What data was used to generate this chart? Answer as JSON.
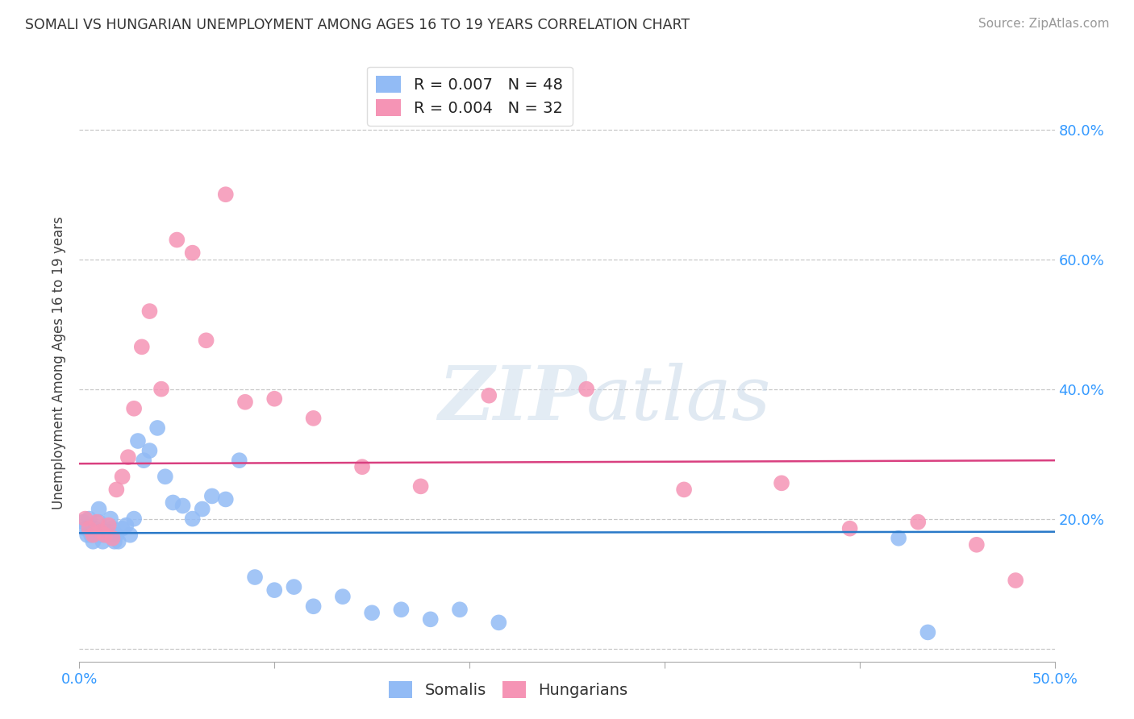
{
  "title": "SOMALI VS HUNGARIAN UNEMPLOYMENT AMONG AGES 16 TO 19 YEARS CORRELATION CHART",
  "source": "Source: ZipAtlas.com",
  "ylabel": "Unemployment Among Ages 16 to 19 years",
  "xlim": [
    0.0,
    0.5
  ],
  "ylim": [
    -0.02,
    0.9
  ],
  "yticks": [
    0.0,
    0.2,
    0.4,
    0.6,
    0.8
  ],
  "xticks": [
    0.0,
    0.1,
    0.2,
    0.3,
    0.4,
    0.5
  ],
  "xtick_labels": [
    "0.0%",
    "",
    "",
    "",
    "",
    "50.0%"
  ],
  "ytick_labels_right": [
    "",
    "20.0%",
    "40.0%",
    "60.0%",
    "80.0%"
  ],
  "somali_R": "0.007",
  "somali_N": "48",
  "hungarian_R": "0.004",
  "hungarian_N": "32",
  "somali_color": "#92bbf5",
  "hungarian_color": "#f594b5",
  "somali_line_color": "#2979c8",
  "hungarian_line_color": "#d94080",
  "somali_trend_y": 0.178,
  "hungarian_trend_y": 0.285,
  "background_color": "#ffffff",
  "grid_color": "#c8c8c8",
  "legend_label_somali": "Somalis",
  "legend_label_hungarian": "Hungarians",
  "somali_x": [
    0.002,
    0.003,
    0.004,
    0.005,
    0.006,
    0.007,
    0.008,
    0.009,
    0.01,
    0.01,
    0.011,
    0.012,
    0.013,
    0.014,
    0.015,
    0.016,
    0.017,
    0.018,
    0.019,
    0.02,
    0.022,
    0.024,
    0.026,
    0.028,
    0.03,
    0.033,
    0.036,
    0.04,
    0.044,
    0.048,
    0.053,
    0.058,
    0.063,
    0.068,
    0.075,
    0.082,
    0.09,
    0.1,
    0.11,
    0.12,
    0.135,
    0.15,
    0.165,
    0.18,
    0.195,
    0.215,
    0.42,
    0.435
  ],
  "somali_y": [
    0.195,
    0.185,
    0.175,
    0.2,
    0.175,
    0.165,
    0.185,
    0.175,
    0.195,
    0.215,
    0.175,
    0.165,
    0.18,
    0.175,
    0.18,
    0.2,
    0.185,
    0.165,
    0.175,
    0.165,
    0.185,
    0.19,
    0.175,
    0.2,
    0.32,
    0.29,
    0.305,
    0.34,
    0.265,
    0.225,
    0.22,
    0.2,
    0.215,
    0.235,
    0.23,
    0.29,
    0.11,
    0.09,
    0.095,
    0.065,
    0.08,
    0.055,
    0.06,
    0.045,
    0.06,
    0.04,
    0.17,
    0.025
  ],
  "hungarian_x": [
    0.003,
    0.005,
    0.007,
    0.009,
    0.011,
    0.013,
    0.015,
    0.017,
    0.019,
    0.022,
    0.025,
    0.028,
    0.032,
    0.036,
    0.042,
    0.05,
    0.058,
    0.065,
    0.075,
    0.085,
    0.1,
    0.12,
    0.145,
    0.175,
    0.21,
    0.26,
    0.31,
    0.36,
    0.395,
    0.43,
    0.46,
    0.48
  ],
  "hungarian_y": [
    0.2,
    0.185,
    0.175,
    0.195,
    0.18,
    0.175,
    0.19,
    0.17,
    0.245,
    0.265,
    0.295,
    0.37,
    0.465,
    0.52,
    0.4,
    0.63,
    0.61,
    0.475,
    0.7,
    0.38,
    0.385,
    0.355,
    0.28,
    0.25,
    0.39,
    0.4,
    0.245,
    0.255,
    0.185,
    0.195,
    0.16,
    0.105
  ]
}
